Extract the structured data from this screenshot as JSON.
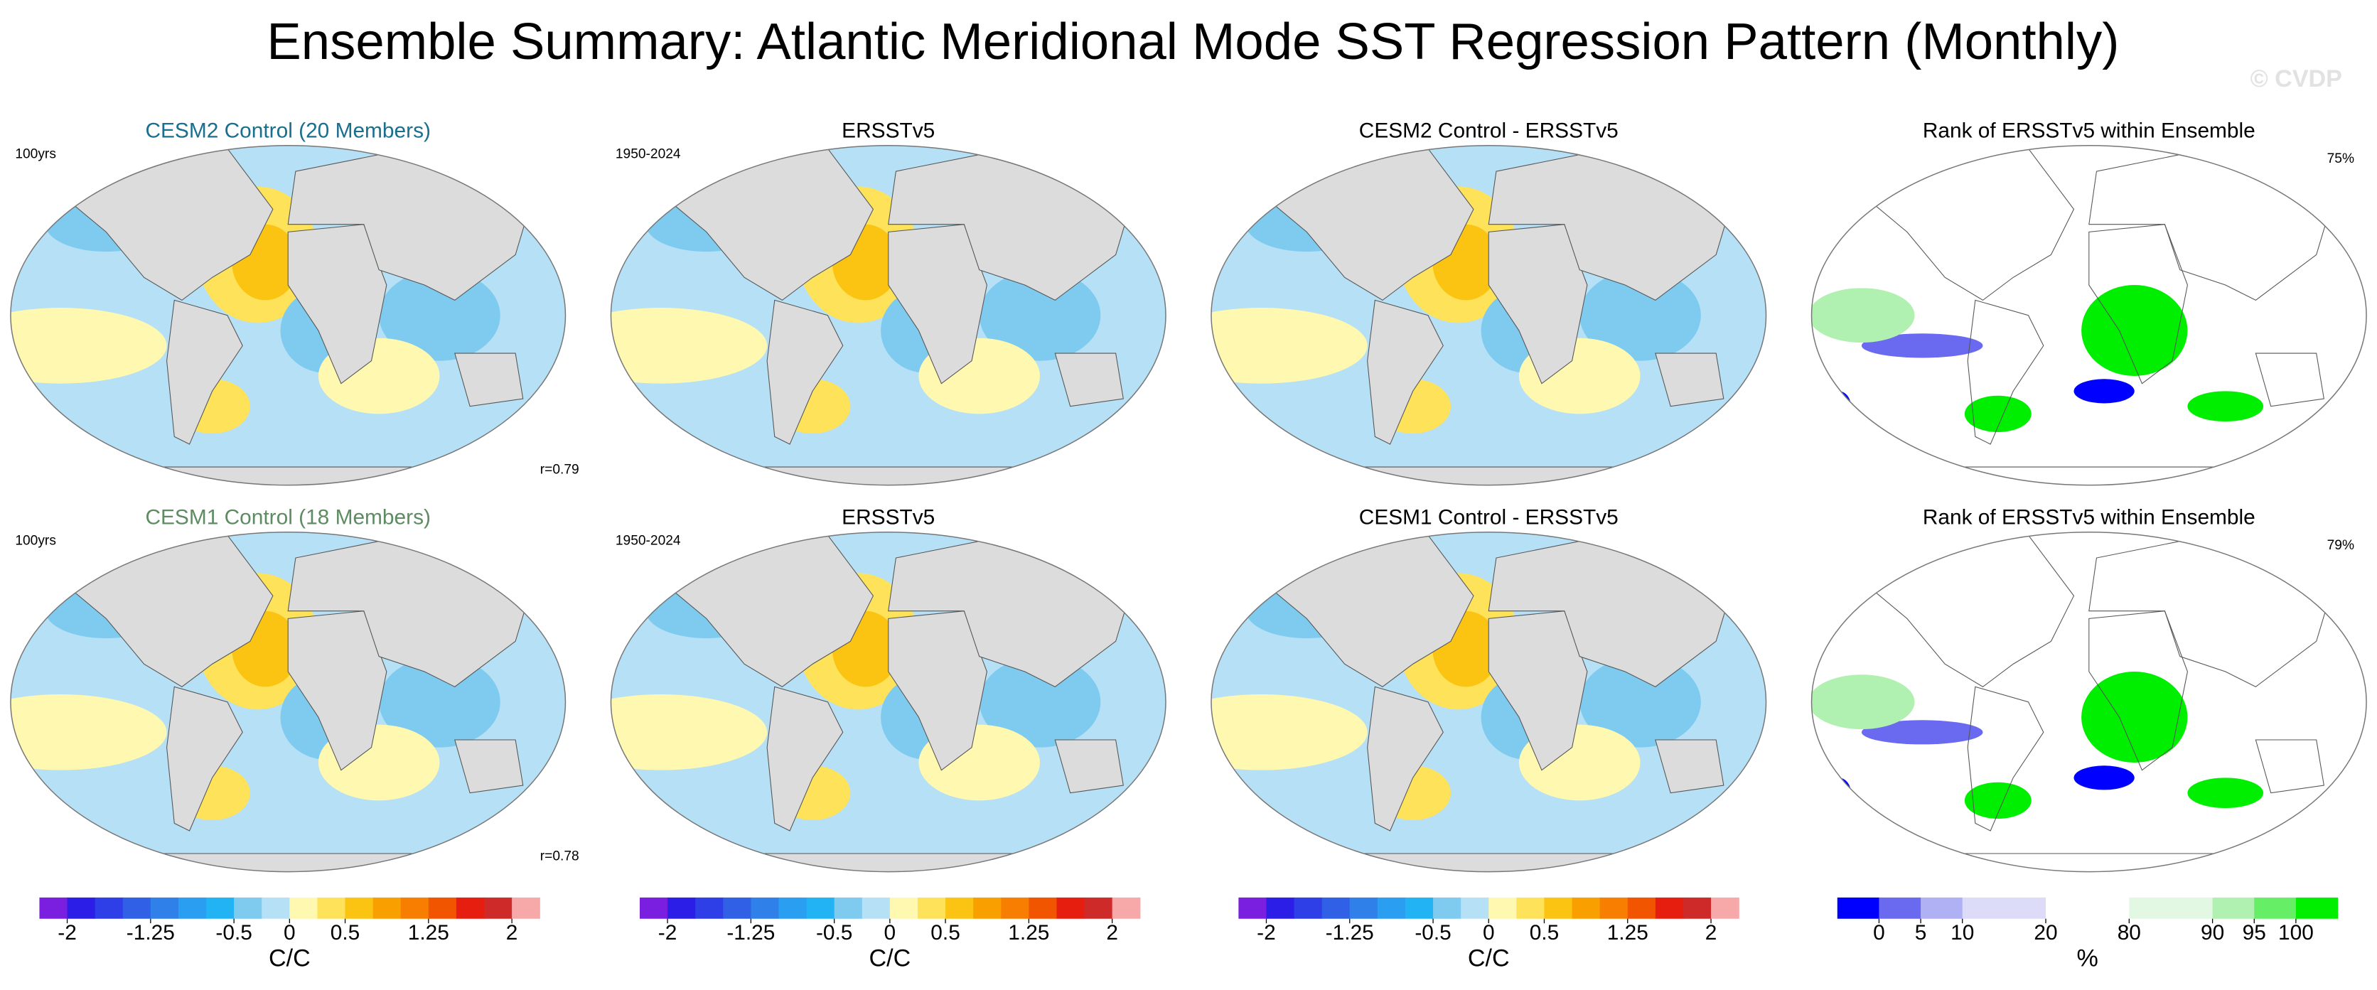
{
  "title": "Ensemble Summary: Atlantic Meridional Mode SST Regression Pattern (Monthly)",
  "watermark": "© CVDP",
  "panels": [
    {
      "title": "CESM2 Control (20 Members)",
      "title_color": "#1a6e8e",
      "left_label": "100yrs",
      "lower_right_label": "r=0.79",
      "kind": "sst"
    },
    {
      "title": "ERSSTv5",
      "left_label": "1950-2024",
      "kind": "sst"
    },
    {
      "title": "CESM2 Control - ERSSTv5",
      "kind": "sst"
    },
    {
      "title": "Rank of ERSSTv5 within Ensemble",
      "upper_right_label": "75%",
      "kind": "rank"
    },
    {
      "title": "CESM1 Control (18 Members)",
      "title_color": "#5e8c62",
      "left_label": "100yrs",
      "lower_right_label": "r=0.78",
      "kind": "sst"
    },
    {
      "title": "ERSSTv5",
      "left_label": "1950-2024",
      "kind": "sst"
    },
    {
      "title": "CESM1 Control - ERSSTv5",
      "kind": "sst"
    },
    {
      "title": "Rank of ERSSTv5 within Ensemble",
      "upper_right_label": "79%",
      "kind": "rank"
    }
  ],
  "colorbars": [
    {
      "units": "C/C",
      "ticks": [
        -2,
        -1.25,
        -0.5,
        0,
        0.5,
        1.25,
        2
      ],
      "colors": [
        "#7a1fe0",
        "#2b1ee6",
        "#2e3fe8",
        "#3060e6",
        "#2f80e8",
        "#2a9ef0",
        "#22b3f5",
        "#7fcbef",
        "#b6e0f5",
        "#fff8b0",
        "#fde25a",
        "#fbc312",
        "#f9a000",
        "#f77e00",
        "#f25500",
        "#e61e10",
        "#cf2a2a",
        "#f7a8a8"
      ]
    },
    {
      "units": "C/C",
      "ticks": [
        -2,
        -1.25,
        -0.5,
        0,
        0.5,
        1.25,
        2
      ],
      "colors": [
        "#7a1fe0",
        "#2b1ee6",
        "#2e3fe8",
        "#3060e6",
        "#2f80e8",
        "#2a9ef0",
        "#22b3f5",
        "#7fcbef",
        "#b6e0f5",
        "#fff8b0",
        "#fde25a",
        "#fbc312",
        "#f9a000",
        "#f77e00",
        "#f25500",
        "#e61e10",
        "#cf2a2a",
        "#f7a8a8"
      ]
    },
    {
      "units": "C/C",
      "ticks": [
        -2,
        -1.25,
        -0.5,
        0,
        0.5,
        1.25,
        2
      ],
      "colors": [
        "#7a1fe0",
        "#2b1ee6",
        "#2e3fe8",
        "#3060e6",
        "#2f80e8",
        "#2a9ef0",
        "#22b3f5",
        "#7fcbef",
        "#b6e0f5",
        "#fff8b0",
        "#fde25a",
        "#fbc312",
        "#f9a000",
        "#f77e00",
        "#f25500",
        "#e61e10",
        "#cf2a2a",
        "#f7a8a8"
      ]
    },
    {
      "units": "%",
      "ticks": [
        0,
        5,
        10,
        20,
        80,
        90,
        95,
        100
      ],
      "colors": [
        "#0000ff",
        "#6a6af0",
        "#b0b0f5",
        "#dcdcf8",
        "#dcdcf8",
        "#ffffff",
        "#ffffff",
        "#e2f8e2",
        "#e2f8e2",
        "#b0f0b0",
        "#66ee66",
        "#00ee00"
      ]
    }
  ]
}
